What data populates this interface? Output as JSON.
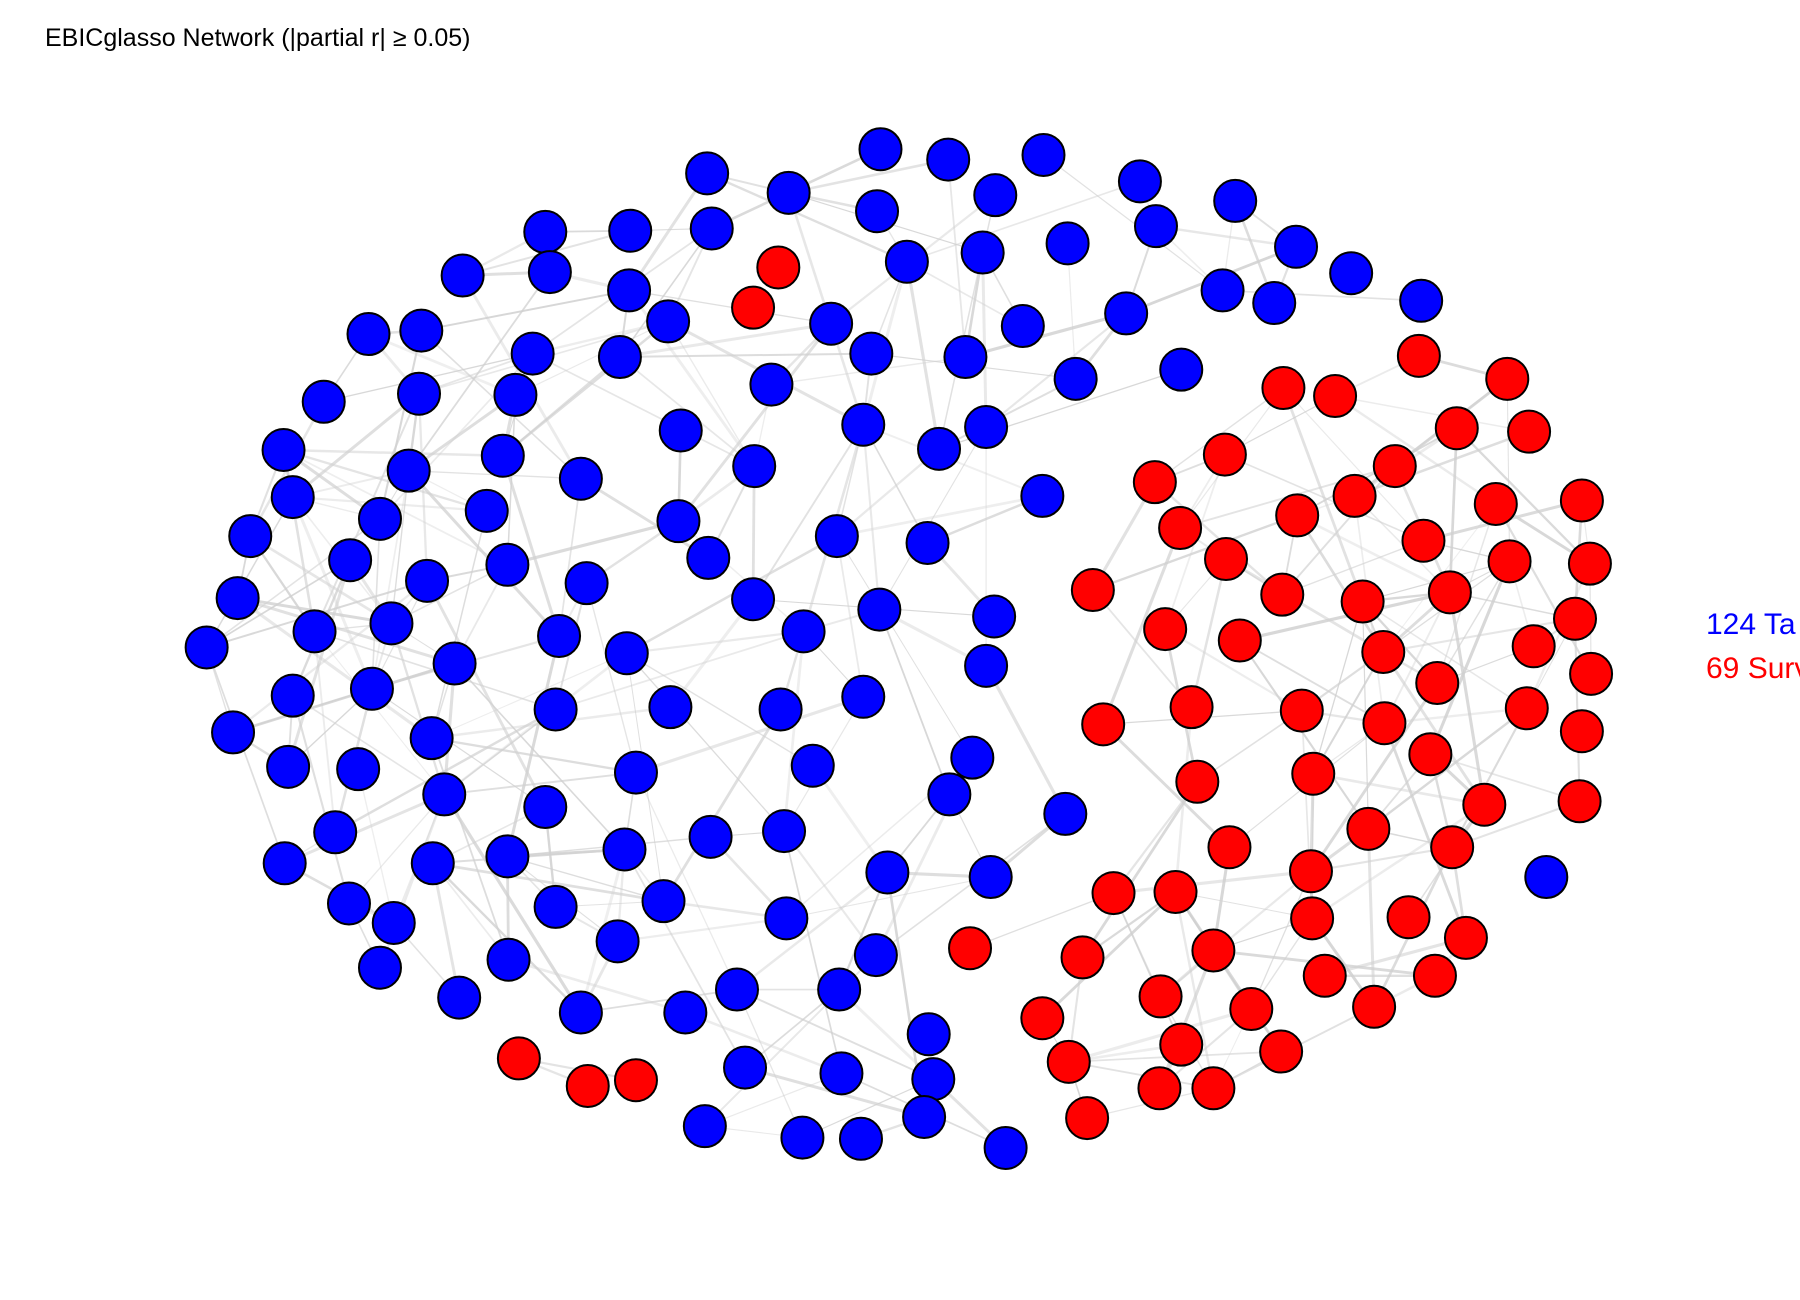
{
  "title": "EBICglasso Network (|partial r| ≥ 0.05)",
  "legend": [
    {
      "text": "124 Ta",
      "color": "#0000ff"
    },
    {
      "text": "69 Surv",
      "color": "#ff0000"
    }
  ],
  "colors": {
    "blue": "#0000ff",
    "red": "#ff0000",
    "edge": "#d0d0d0",
    "outline": "#000000"
  }
}
